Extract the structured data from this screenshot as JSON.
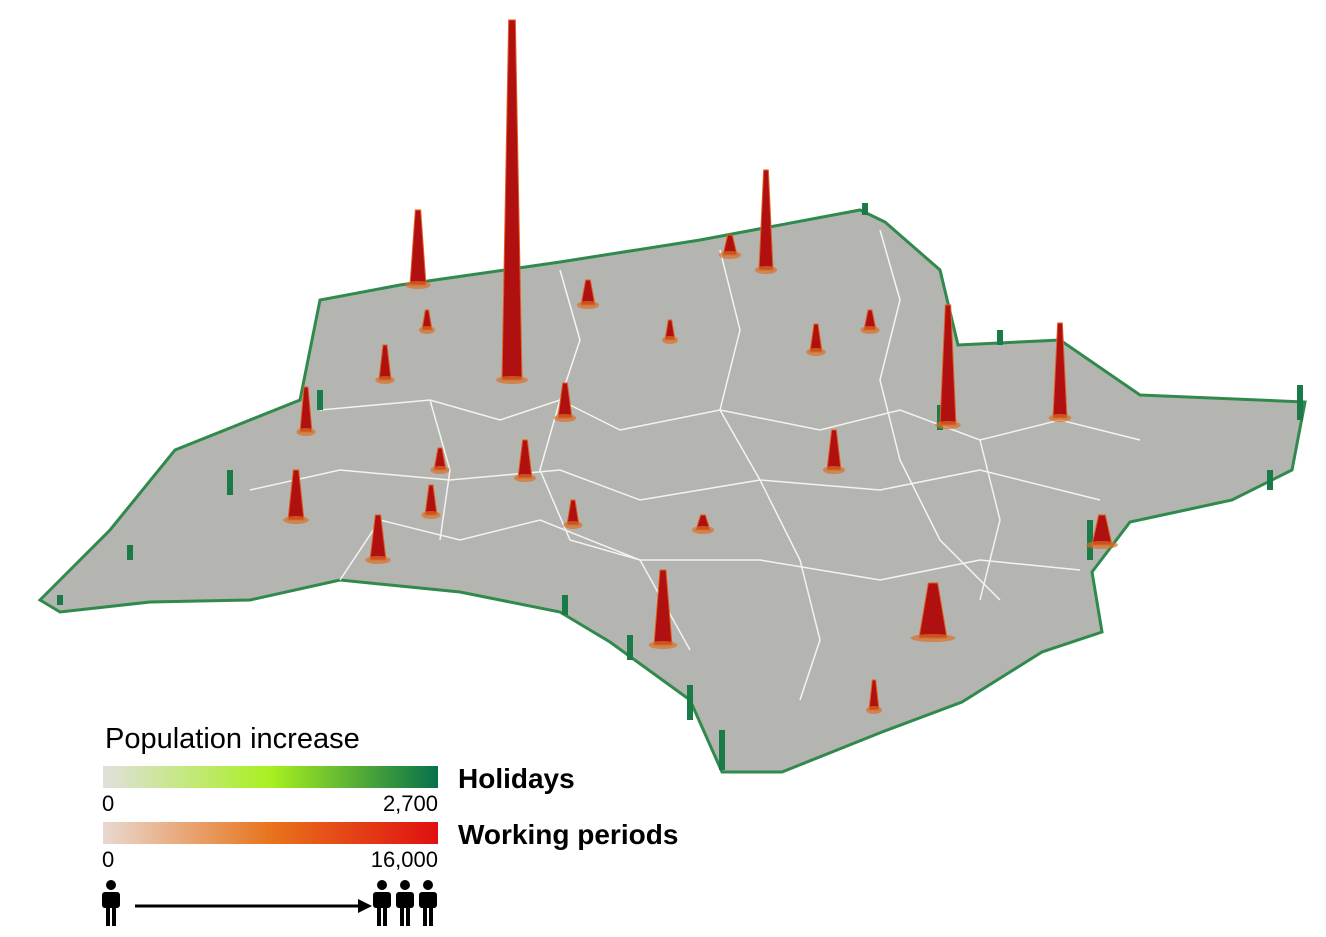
{
  "legend": {
    "title": "Population increase",
    "scales": [
      {
        "name": "Holidays",
        "colors": [
          "#e0e0dc",
          "#a8f020",
          "#08704a"
        ],
        "min": 0,
        "max": {
          "value": 2700,
          "label": "2,700"
        }
      },
      {
        "name": "Working periods",
        "colors": [
          "#e8d8d0",
          "#e8741c",
          "#e01010"
        ],
        "min": 0,
        "max": {
          "value": 16000,
          "label": "16,000"
        }
      }
    ]
  }
}
